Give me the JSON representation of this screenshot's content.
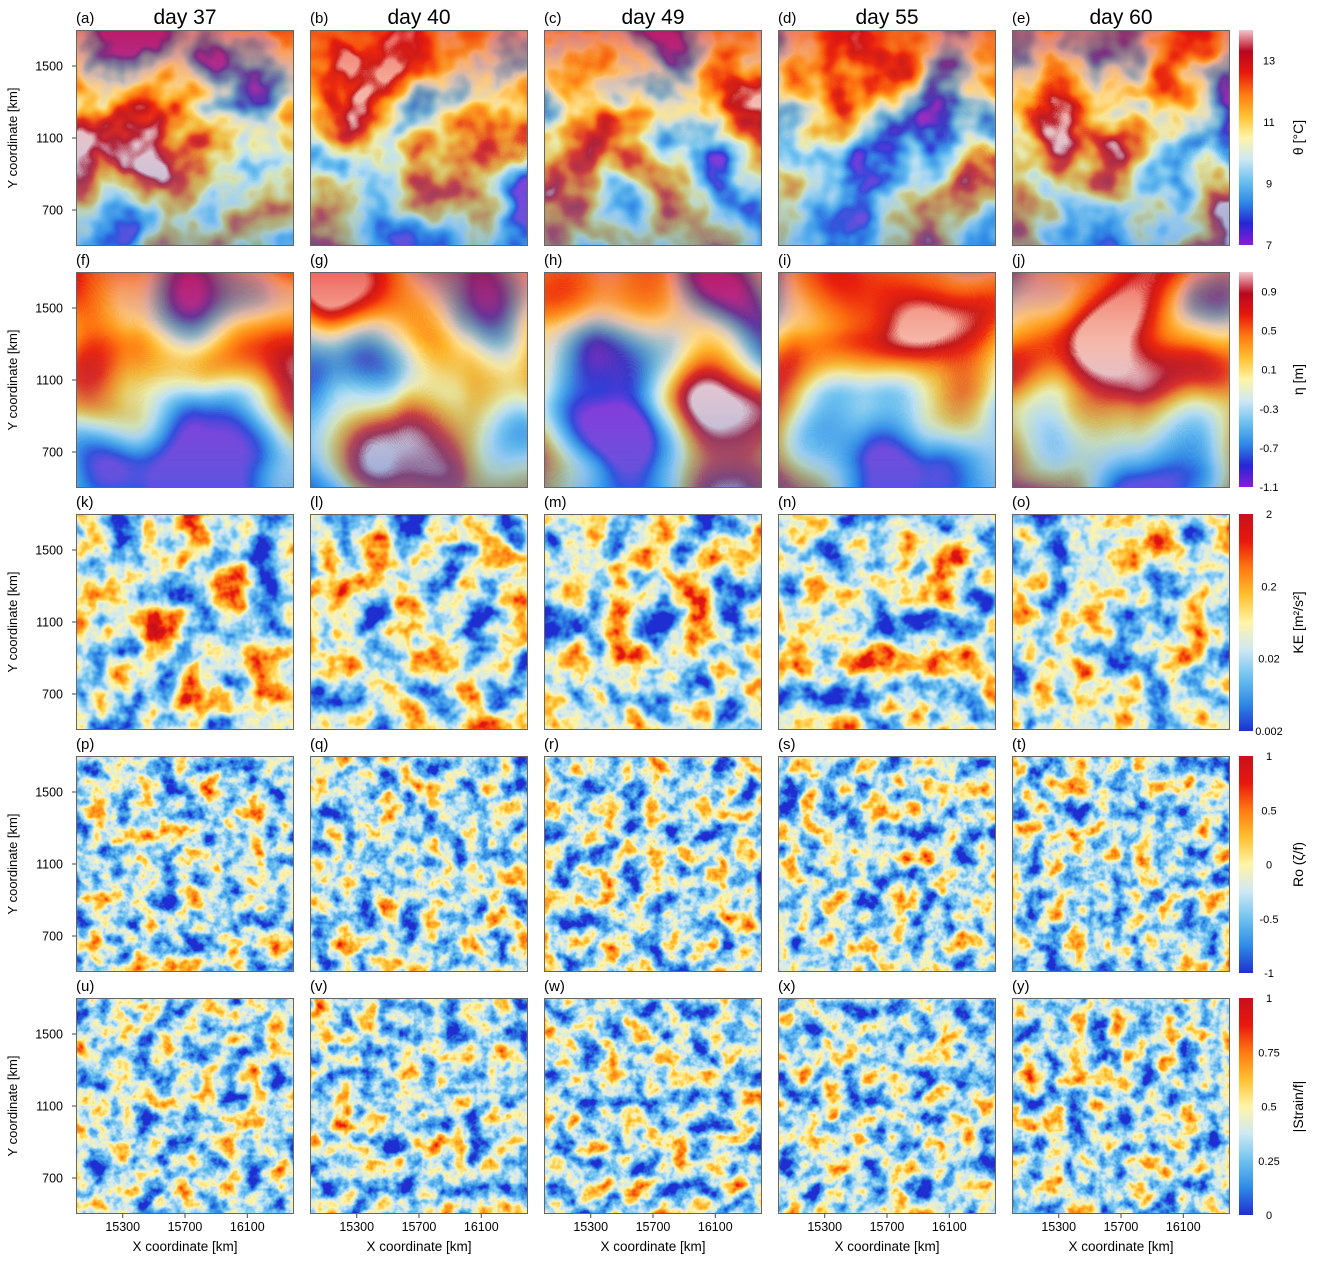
{
  "chart_data": {
    "type": "heatmap",
    "columns": [
      {
        "title": "day 37"
      },
      {
        "title": "day 40"
      },
      {
        "title": "day 49"
      },
      {
        "title": "day 55"
      },
      {
        "title": "day 60"
      }
    ],
    "panel_letters": [
      "(a)",
      "(b)",
      "(c)",
      "(d)",
      "(e)",
      "(f)",
      "(g)",
      "(h)",
      "(i)",
      "(j)",
      "(k)",
      "(l)",
      "(m)",
      "(n)",
      "(o)",
      "(p)",
      "(q)",
      "(r)",
      "(s)",
      "(t)",
      "(u)",
      "(v)",
      "(w)",
      "(x)",
      "(y)"
    ],
    "xlabel": "X coordinate [km]",
    "ylabel": "Y coordinate [km]",
    "xticks": [
      "15300",
      "15700",
      "16100"
    ],
    "xtick_values": [
      15300,
      15700,
      16100
    ],
    "xlim": [
      15000,
      16400
    ],
    "yticks": [
      "1500",
      "1100",
      "700"
    ],
    "ytick_values": [
      1500,
      1100,
      700
    ],
    "ylim": [
      500,
      1700
    ],
    "rows": [
      {
        "variable": "theta",
        "colorbar_label": "θ [°C]",
        "ticks": [
          "13",
          "11",
          "9",
          "7"
        ],
        "tick_values": [
          13,
          11,
          9,
          7
        ],
        "range": [
          7,
          14
        ],
        "scale": "linear",
        "colors": [
          "#8a1cd6",
          "#2626d4",
          "#2f8ae6",
          "#6ec2f0",
          "#cfe8f4",
          "#fff5a8",
          "#ffc030",
          "#ff7a10",
          "#e8180e",
          "#b8061e",
          "#f3c6cc"
        ]
      },
      {
        "variable": "eta",
        "colorbar_label": "η [m]",
        "ticks": [
          "0.9",
          "0.5",
          "0.1",
          "-0.3",
          "-0.7",
          "-1.1"
        ],
        "tick_values": [
          0.9,
          0.5,
          0.1,
          -0.3,
          -0.7,
          -1.1
        ],
        "range": [
          -1.1,
          1.1
        ],
        "scale": "linear",
        "colors": [
          "#8a1cd6",
          "#2626d4",
          "#2f8ae6",
          "#6ec2f0",
          "#cfe8f4",
          "#fff5a8",
          "#ffc030",
          "#ff7a10",
          "#e8180e",
          "#b8061e",
          "#f3c6cc"
        ]
      },
      {
        "variable": "KE",
        "colorbar_label": "KE [m²/s²]",
        "ticks": [
          "2",
          "0.2",
          "0.02",
          "0.002"
        ],
        "tick_values": [
          2,
          0.2,
          0.02,
          0.002
        ],
        "range": [
          0.002,
          2
        ],
        "scale": "log",
        "colors": [
          "#1f2fd0",
          "#2f8ae6",
          "#6ec2f0",
          "#cfe8f4",
          "#fff5a8",
          "#ffc030",
          "#ff7a10",
          "#e8180e",
          "#c8101c"
        ]
      },
      {
        "variable": "Ro",
        "colorbar_label": "Ro (ζ/f)",
        "ticks": [
          "1",
          "0.5",
          "0",
          "-0.5",
          "-1"
        ],
        "tick_values": [
          1,
          0.5,
          0,
          -0.5,
          -1
        ],
        "range": [
          -1,
          1
        ],
        "scale": "linear",
        "colors": [
          "#1f2fd0",
          "#2f8ae6",
          "#6ec2f0",
          "#cfe8f4",
          "#fff5a8",
          "#ffc030",
          "#ff7a10",
          "#e8180e",
          "#c8101c"
        ]
      },
      {
        "variable": "strain",
        "colorbar_label": "|Strain/f|",
        "ticks": [
          "1",
          "0.75",
          "0.5",
          "0.25",
          "0"
        ],
        "tick_values": [
          1,
          0.75,
          0.5,
          0.25,
          0
        ],
        "range": [
          0,
          1
        ],
        "scale": "linear",
        "colors": [
          "#1f2fd0",
          "#2f8ae6",
          "#6ec2f0",
          "#cfe8f4",
          "#fff5a8",
          "#ffc030",
          "#ff7a10",
          "#e8180e",
          "#c8101c"
        ]
      }
    ],
    "grid": false
  }
}
